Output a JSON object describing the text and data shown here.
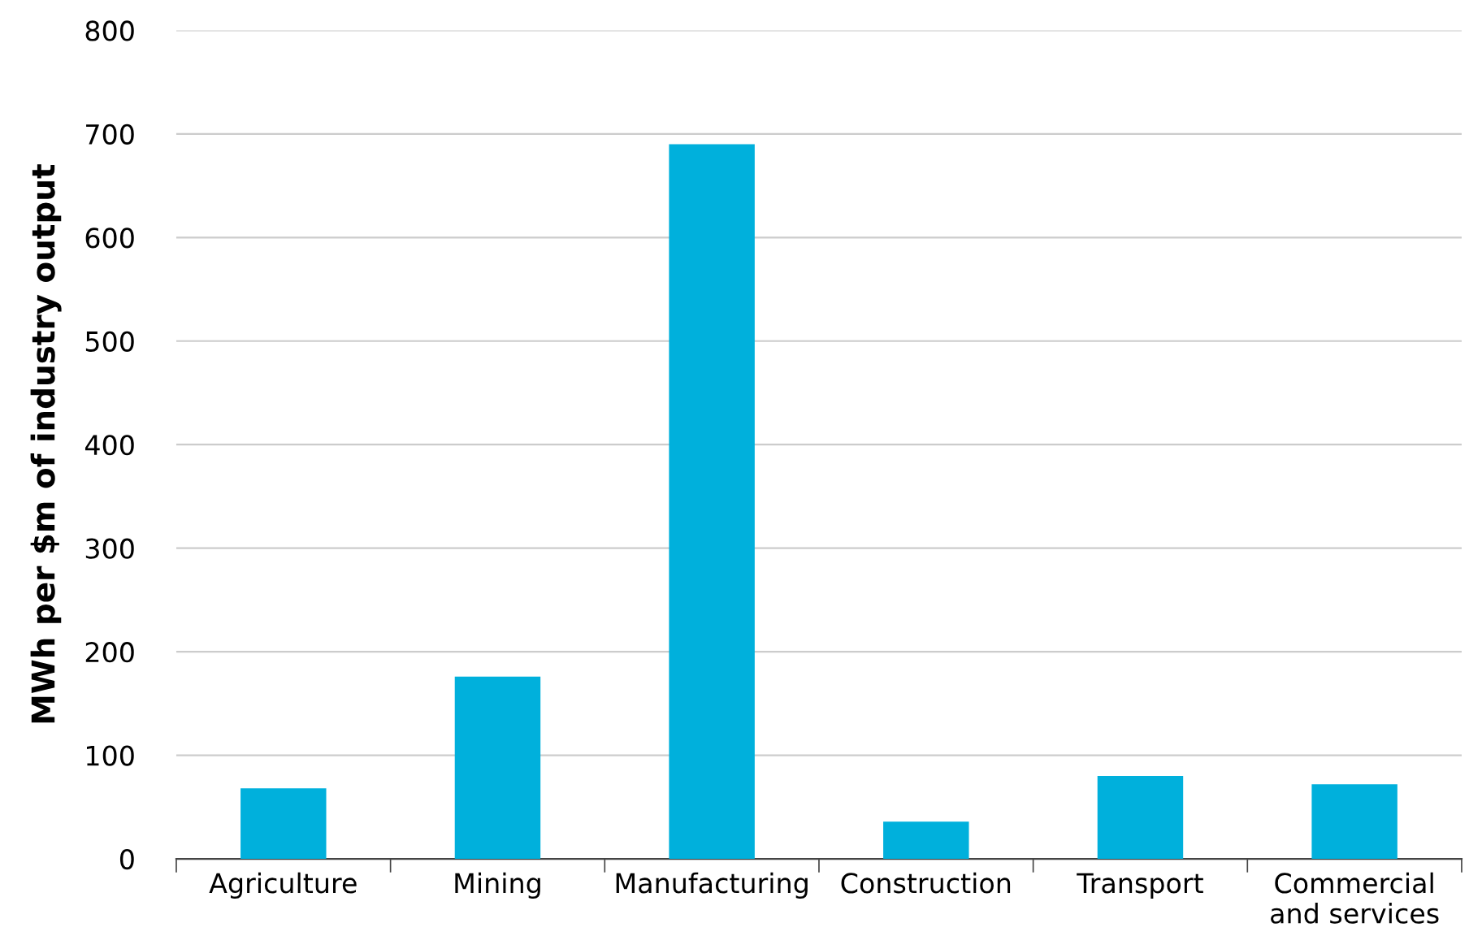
{
  "chart_data": {
    "type": "bar",
    "ylabel": "MWh per $m of industry output",
    "categories": [
      "Agriculture",
      "Mining",
      "Manufacturing",
      "Construction",
      "Transport",
      "Commercial\nand services"
    ],
    "values": [
      68,
      176,
      690,
      36,
      80,
      72
    ],
    "color": "#00b0dc",
    "ylim": [
      0,
      800
    ],
    "yticks": [
      0,
      100,
      200,
      300,
      400,
      500,
      600,
      700,
      800
    ],
    "grid": "y"
  }
}
